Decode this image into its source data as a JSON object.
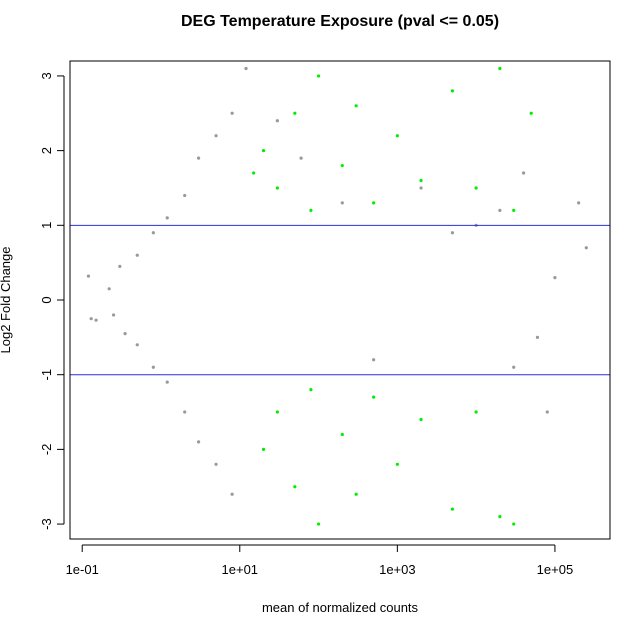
{
  "chart_data": {
    "type": "scatter",
    "title": "DEG Temperature Exposure  (pval <= 0.05)",
    "xlabel": "mean of normalized counts",
    "ylabel": "Log2 Fold Change",
    "x_scale": "log10",
    "xlim": [
      0.07,
      500000
    ],
    "ylim": [
      -3.2,
      3.2
    ],
    "x_ticks": [
      {
        "value": 0.1,
        "label": "1e-01"
      },
      {
        "value": 10,
        "label": "1e+01"
      },
      {
        "value": 1000,
        "label": "1e+03"
      },
      {
        "value": 100000,
        "label": "1e+05"
      }
    ],
    "y_ticks": [
      {
        "value": -3,
        "label": "-3"
      },
      {
        "value": -2,
        "label": "-2"
      },
      {
        "value": -1,
        "label": "-1"
      },
      {
        "value": 0,
        "label": "0"
      },
      {
        "value": 1,
        "label": "1"
      },
      {
        "value": 2,
        "label": "2"
      },
      {
        "value": 3,
        "label": "3"
      }
    ],
    "hlines": [
      1,
      -1
    ],
    "hline_color": "#2d2de0",
    "grid": false,
    "series": [
      {
        "color": "#999999",
        "values": [
          [
            0.12,
            0.32
          ],
          [
            0.13,
            -0.25
          ],
          [
            0.15,
            -0.27
          ],
          [
            0.22,
            0.15
          ],
          [
            0.25,
            -0.2
          ],
          [
            0.3,
            0.45
          ],
          [
            0.35,
            -0.45
          ],
          [
            0.5,
            0.6
          ],
          [
            0.5,
            -0.6
          ],
          [
            0.8,
            0.9
          ],
          [
            0.8,
            -0.9
          ],
          [
            1.2,
            1.1
          ],
          [
            1.2,
            -1.1
          ],
          [
            2,
            1.4
          ],
          [
            2,
            -1.5
          ],
          [
            3,
            1.9
          ],
          [
            3,
            -1.9
          ],
          [
            5,
            2.2
          ],
          [
            5,
            -2.2
          ],
          [
            8,
            2.5
          ],
          [
            8,
            -2.6
          ],
          [
            12,
            3.1
          ],
          [
            30,
            2.4
          ],
          [
            60,
            1.9
          ],
          [
            200,
            1.3
          ],
          [
            500,
            -0.8
          ],
          [
            2000,
            1.5
          ],
          [
            5000,
            0.9
          ],
          [
            10000,
            1.0
          ],
          [
            20000,
            1.2
          ],
          [
            30000,
            -0.9
          ],
          [
            60000,
            -0.5
          ],
          [
            100000,
            0.3
          ],
          [
            200000,
            1.3
          ],
          [
            250000,
            0.7
          ],
          [
            80000,
            -1.5
          ],
          [
            40000,
            1.7
          ]
        ]
      },
      {
        "color": "#00ee00",
        "values": [
          [
            15,
            1.7
          ],
          [
            20,
            2.0
          ],
          [
            30,
            1.5
          ],
          [
            50,
            2.5
          ],
          [
            80,
            1.2
          ],
          [
            100,
            3.0
          ],
          [
            200,
            1.8
          ],
          [
            300,
            2.6
          ],
          [
            500,
            1.3
          ],
          [
            1000,
            2.2
          ],
          [
            2000,
            1.6
          ],
          [
            5000,
            2.8
          ],
          [
            10000,
            1.5
          ],
          [
            20000,
            3.1
          ],
          [
            30000,
            1.2
          ],
          [
            50000,
            2.5
          ],
          [
            20,
            -2.0
          ],
          [
            30,
            -1.5
          ],
          [
            50,
            -2.5
          ],
          [
            80,
            -1.2
          ],
          [
            100,
            -3.0
          ],
          [
            200,
            -1.8
          ],
          [
            300,
            -2.6
          ],
          [
            500,
            -1.3
          ],
          [
            1000,
            -2.2
          ],
          [
            2000,
            -1.6
          ],
          [
            5000,
            -2.8
          ],
          [
            10000,
            -1.5
          ],
          [
            20000,
            -2.9
          ],
          [
            30000,
            -3.0
          ]
        ]
      }
    ]
  }
}
